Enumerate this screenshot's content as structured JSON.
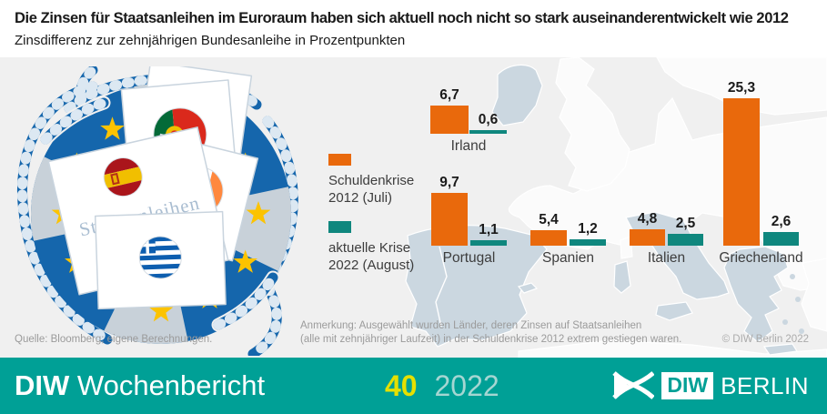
{
  "header": {
    "title": "Die Zinsen für Staatsanleihen im Euroraum haben sich aktuell noch nicht so stark auseinanderentwickelt wie 2012",
    "subtitle": "Zinsdifferenz zur zehnjährigen Bundesanleihe in Prozentpunkten"
  },
  "legend": {
    "items": [
      {
        "label_line1": "Schuldenkrise",
        "label_line2": "2012 (Juli)",
        "color": "#E9690C"
      },
      {
        "label_line1": "aktuelle Krise",
        "label_line2": "2022 (August)",
        "color": "#0F877E"
      }
    ]
  },
  "chart_data": {
    "type": "bar",
    "title": "Zinsdifferenz zur zehnjährigen Bundesanleihe in Prozentpunkten",
    "unit": "Prozentpunkte",
    "categories": [
      "Irland",
      "Portugal",
      "Spanien",
      "Italien",
      "Griechenland"
    ],
    "series": [
      {
        "name": "Schuldenkrise 2012 (Juli)",
        "color": "#E9690C",
        "values": [
          6.7,
          9.7,
          5.4,
          4.8,
          25.3
        ],
        "labels": [
          "6,7",
          "9,7",
          "5,4",
          "4,8",
          "25,3"
        ]
      },
      {
        "name": "aktuelle Krise 2022 (August)",
        "color": "#0F877E",
        "values": [
          0.6,
          1.1,
          1.2,
          2.5,
          2.6
        ],
        "labels": [
          "0,6",
          "1,1",
          "1,2",
          "2,5",
          "2,6"
        ]
      }
    ],
    "grid": false,
    "legend_position": "left",
    "background": "map of Europe, crisis countries highlighted"
  },
  "illustration": {
    "card_text": "Staatsanleihen"
  },
  "notes": {
    "source": "Quelle: Bloomberg; eigene Berechnungen.",
    "note_line1": "Anmerkung: Ausgewählt wurden Länder, deren Zinsen auf Staatsanleihen",
    "note_line2": "(alle mit zehnjähriger Laufzeit) in der Schuldenkrise 2012 extrem gestiegen waren.",
    "copyright": "© DIW Berlin 2022"
  },
  "footer": {
    "journal_bold": "DIW",
    "journal_name": "Wochenbericht",
    "issue": "40",
    "year": "2022",
    "logo_text_diw": "DIW",
    "logo_text_berlin": "BERLIN",
    "teal": "#00A096"
  }
}
